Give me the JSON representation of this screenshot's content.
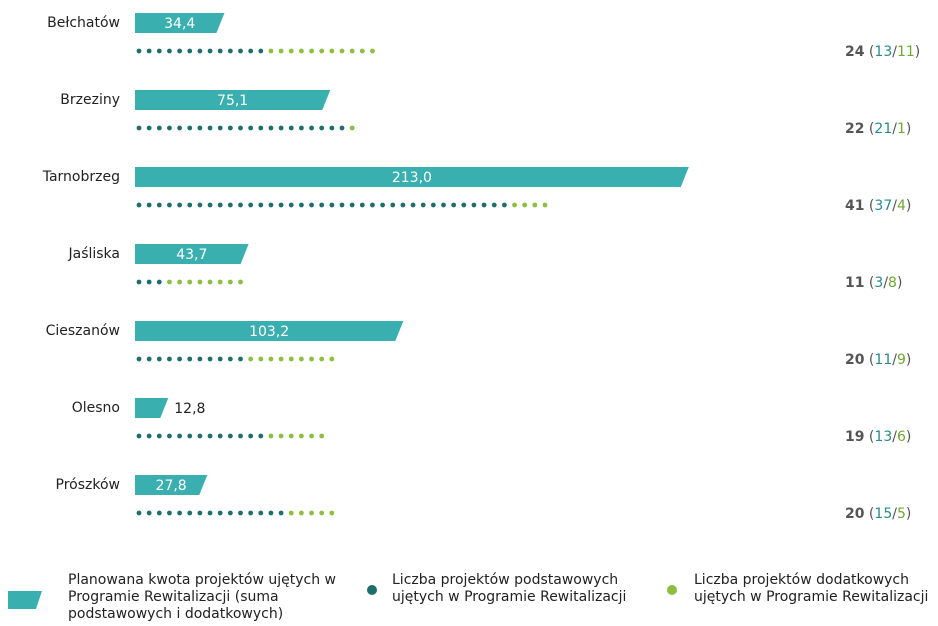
{
  "chart_data": {
    "type": "bar",
    "categories": [
      "Bełchatów",
      "Brzeziny",
      "Tarnobrzeg",
      "Jaśliska",
      "Cieszanów",
      "Olesno",
      "Prószków"
    ],
    "series": [
      {
        "name": "Planowana kwota projektów ujętych w Programie Rewitalizacji (suma podstawowych i dodatkowych)",
        "color": "#3aafb0",
        "values": [
          34.4,
          75.1,
          213.0,
          43.7,
          103.2,
          12.8,
          27.8
        ],
        "value_labels": [
          "34,4",
          "75,1",
          "213,0",
          "43,7",
          "103,2",
          "12,8",
          "27,8"
        ]
      },
      {
        "name": "Liczba projektów podstawowych ujętych w Programie Rewitalizacji",
        "color": "#1f6e6e",
        "values": [
          13,
          21,
          37,
          3,
          11,
          13,
          15
        ]
      },
      {
        "name": "Liczba projektów dodatkowych ujętych w Programie Rewitalizacji",
        "color": "#8cbf3f",
        "values": [
          11,
          1,
          4,
          8,
          9,
          6,
          5
        ]
      }
    ],
    "totals": [
      24,
      22,
      41,
      11,
      20,
      19,
      20
    ]
  }
}
